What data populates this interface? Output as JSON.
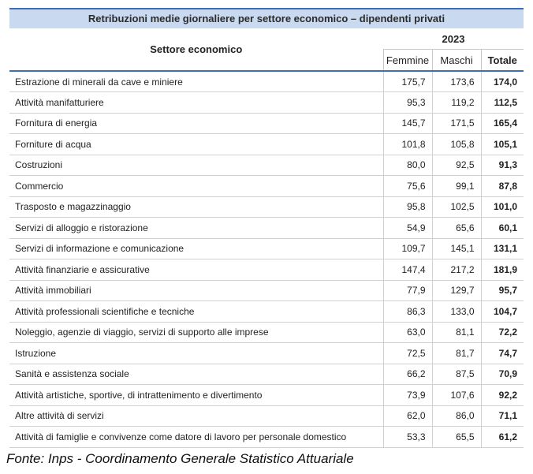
{
  "title": "Retribuzioni medie giornaliere per settore economico – dipendenti privati",
  "header": {
    "sector": "Settore economico",
    "year": "2023",
    "cols": [
      "Femmine",
      "Maschi",
      "Totale"
    ]
  },
  "rows": [
    {
      "name": "Estrazione di minerali da cave e miniere",
      "f": "175,7",
      "m": "173,6",
      "t": "174,0"
    },
    {
      "name": "Attività manifatturiere",
      "f": "95,3",
      "m": "119,2",
      "t": "112,5"
    },
    {
      "name": "Fornitura di energia",
      "f": "145,7",
      "m": "171,5",
      "t": "165,4"
    },
    {
      "name": "Forniture di acqua",
      "f": "101,8",
      "m": "105,8",
      "t": "105,1"
    },
    {
      "name": "Costruzioni",
      "f": "80,0",
      "m": "92,5",
      "t": "91,3"
    },
    {
      "name": "Commercio",
      "f": "75,6",
      "m": "99,1",
      "t": "87,8"
    },
    {
      "name": "Trasposto e magazzinaggio",
      "f": "95,8",
      "m": "102,5",
      "t": "101,0"
    },
    {
      "name": "Servizi di alloggio e ristorazione",
      "f": "54,9",
      "m": "65,6",
      "t": "60,1"
    },
    {
      "name": "Servizi di informazione e comunicazione",
      "f": "109,7",
      "m": "145,1",
      "t": "131,1"
    },
    {
      "name": "Attività finanziarie e assicurative",
      "f": "147,4",
      "m": "217,2",
      "t": "181,9"
    },
    {
      "name": "Attività immobiliari",
      "f": "77,9",
      "m": "129,7",
      "t": "95,7"
    },
    {
      "name": "Attività professionali scientifiche e tecniche",
      "f": "86,3",
      "m": "133,0",
      "t": "104,7"
    },
    {
      "name": "Noleggio, agenzie di viaggio, servizi di supporto alle imprese",
      "f": "63,0",
      "m": "81,1",
      "t": "72,2"
    },
    {
      "name": "Istruzione",
      "f": "72,5",
      "m": "81,7",
      "t": "74,7"
    },
    {
      "name": "Sanità e assistenza sociale",
      "f": "66,2",
      "m": "87,5",
      "t": "70,9"
    },
    {
      "name": "Attività artistiche, sportive, di intrattenimento e divertimento",
      "f": "73,9",
      "m": "107,6",
      "t": "92,2"
    },
    {
      "name": "Altre attività di servizi",
      "f": "62,0",
      "m": "86,0",
      "t": "71,1"
    },
    {
      "name": "Attività di famiglie e convivenze come datore di lavoro per personale domestico",
      "f": "53,3",
      "m": "65,5",
      "t": "61,2"
    }
  ],
  "source": "Fonte: Inps - Coordinamento Generale Statistico Attuariale",
  "colors": {
    "accent": "#3d6fb6",
    "title_bg": "#c9d9ef"
  }
}
